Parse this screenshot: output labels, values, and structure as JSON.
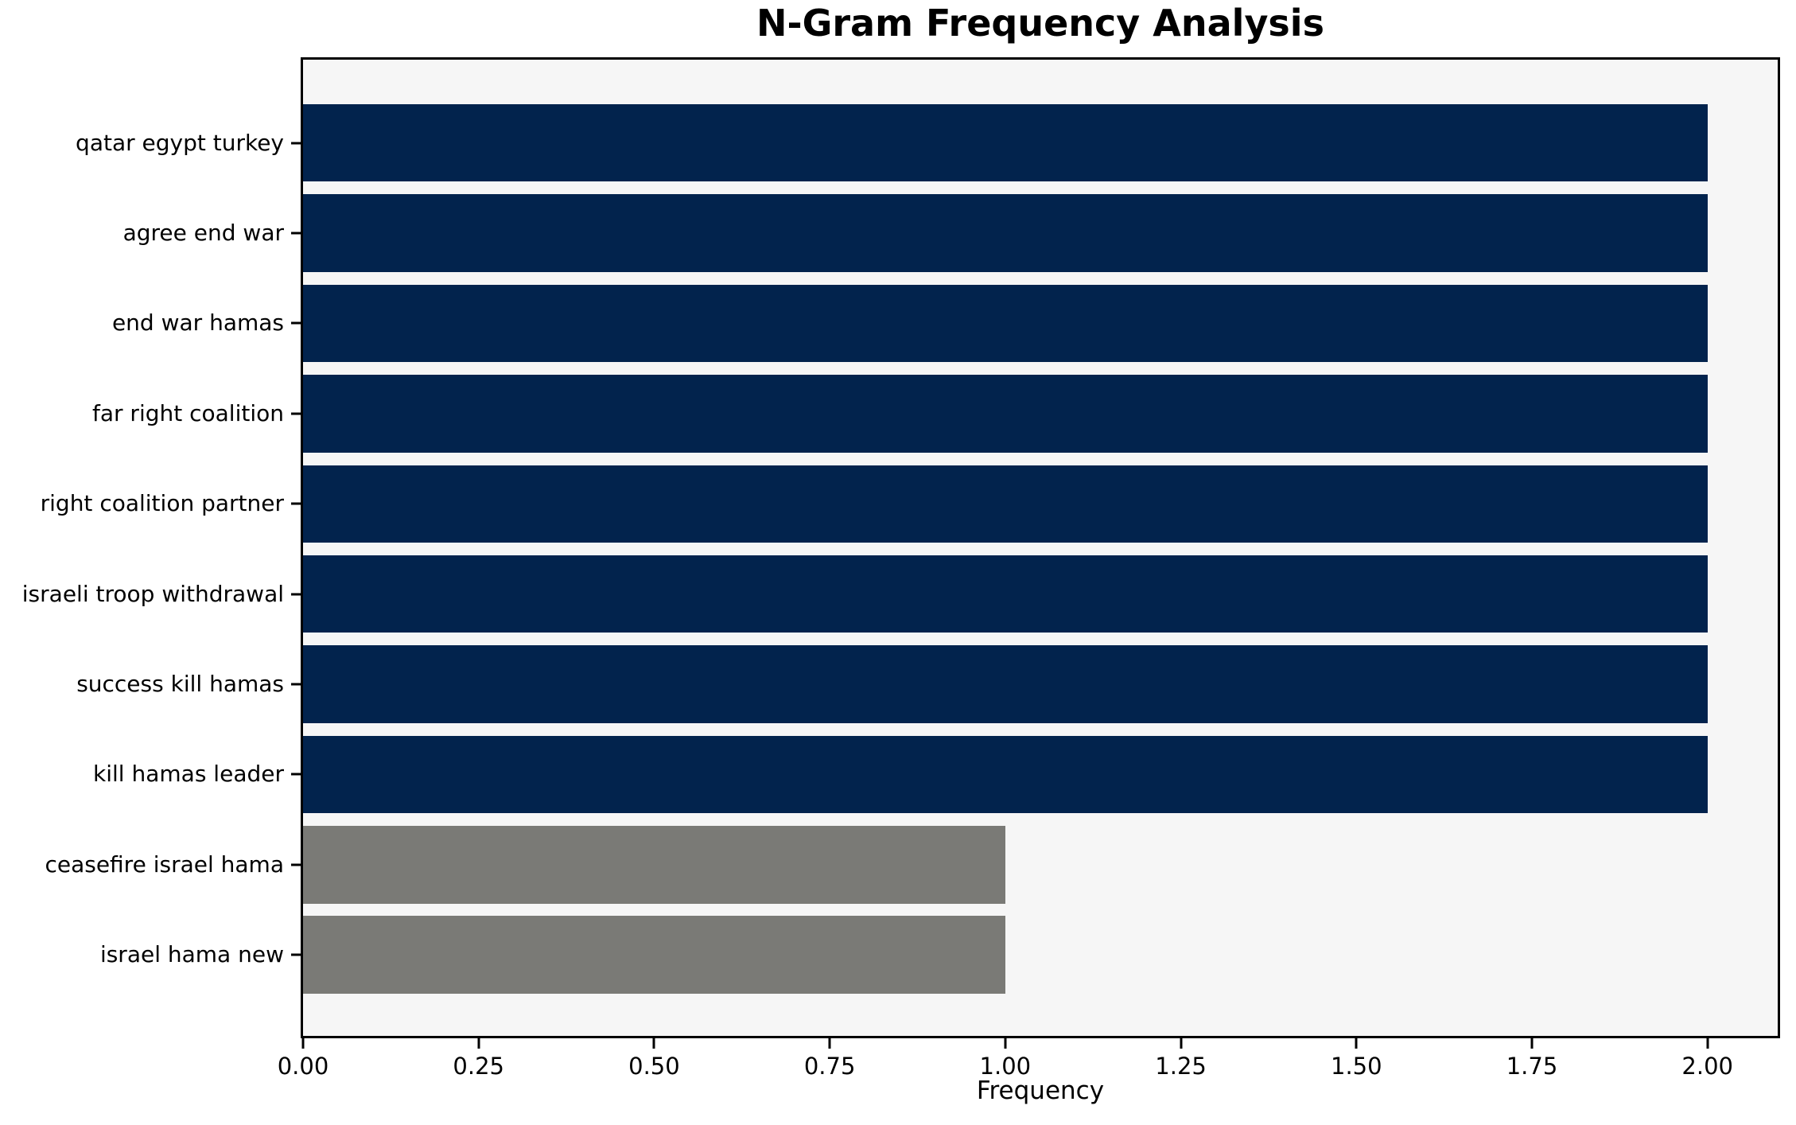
{
  "figure": {
    "title": "N-Gram Frequency Analysis",
    "xlabel": "Frequency"
  },
  "colors": {
    "bar_primary": "#02234d",
    "bar_secondary": "#7a7a76",
    "plot_background": "#f6f6f6",
    "figure_background": "#ffffff",
    "spine": "#000000",
    "text": "#000000"
  },
  "chart_data": {
    "type": "bar",
    "orientation": "horizontal",
    "title": "N-Gram Frequency Analysis",
    "xlabel": "Frequency",
    "ylabel": "",
    "categories": [
      "qatar egypt turkey",
      "agree end war",
      "end war hamas",
      "far right coalition",
      "right coalition partner",
      "israeli troop withdrawal",
      "success kill hamas",
      "kill hamas leader",
      "ceasefire israel hama",
      "israel hama new"
    ],
    "values": [
      2,
      2,
      2,
      2,
      2,
      2,
      2,
      2,
      1,
      1
    ],
    "bar_colors": [
      "#02234d",
      "#02234d",
      "#02234d",
      "#02234d",
      "#02234d",
      "#02234d",
      "#02234d",
      "#02234d",
      "#7a7a76",
      "#7a7a76"
    ],
    "xlim": [
      0,
      2.1
    ],
    "xtick_values": [
      0,
      0.25,
      0.5,
      0.75,
      1.0,
      1.25,
      1.5,
      1.75,
      2.0
    ],
    "xtick_labels": [
      "0.00",
      "0.25",
      "0.50",
      "0.75",
      "1.00",
      "1.25",
      "1.50",
      "1.75",
      "2.00"
    ],
    "grid": false,
    "legend_position": "none"
  }
}
